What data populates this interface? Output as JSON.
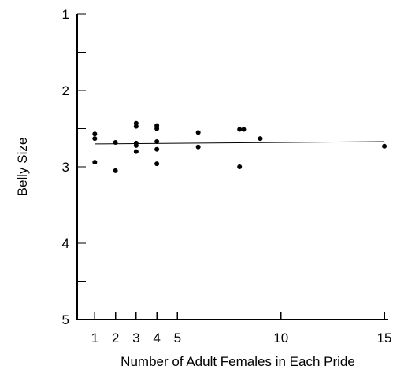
{
  "chart_data": {
    "type": "scatter",
    "title": "",
    "xlabel": "Number of Adult Females in Each Pride",
    "ylabel": "Belly Size",
    "xlim": [
      0.15,
      15.15
    ],
    "ylim": [
      1,
      5
    ],
    "y_axis_inverted": true,
    "grid": false,
    "x_ticks": [
      {
        "value": 1,
        "label": "1"
      },
      {
        "value": 2,
        "label": "2"
      },
      {
        "value": 3,
        "label": "3"
      },
      {
        "value": 4,
        "label": "4"
      },
      {
        "value": 5,
        "label": "5"
      },
      {
        "value": 10,
        "label": "10"
      },
      {
        "value": 15,
        "label": "15"
      }
    ],
    "y_ticks": [
      {
        "value": 1,
        "label": "1"
      },
      {
        "value": 1.5,
        "label": ""
      },
      {
        "value": 2,
        "label": "2"
      },
      {
        "value": 2.5,
        "label": ""
      },
      {
        "value": 3,
        "label": "3"
      },
      {
        "value": 3.5,
        "label": ""
      },
      {
        "value": 4,
        "label": "4"
      },
      {
        "value": 4.5,
        "label": ""
      },
      {
        "value": 5,
        "label": "5"
      }
    ],
    "series": [
      {
        "points": [
          {
            "x": 1,
            "y": 2.57
          },
          {
            "x": 1,
            "y": 2.63
          },
          {
            "x": 1,
            "y": 2.94
          },
          {
            "x": 2,
            "y": 2.68
          },
          {
            "x": 2,
            "y": 3.05
          },
          {
            "x": 3,
            "y": 2.43
          },
          {
            "x": 3,
            "y": 2.47
          },
          {
            "x": 3,
            "y": 2.69
          },
          {
            "x": 3,
            "y": 2.72
          },
          {
            "x": 3,
            "y": 2.8
          },
          {
            "x": 4,
            "y": 2.46
          },
          {
            "x": 4,
            "y": 2.5
          },
          {
            "x": 4,
            "y": 2.67
          },
          {
            "x": 4,
            "y": 2.77
          },
          {
            "x": 4,
            "y": 2.96
          },
          {
            "x": 6,
            "y": 2.55
          },
          {
            "x": 6,
            "y": 2.74
          },
          {
            "x": 8,
            "y": 2.51
          },
          {
            "x": 8.2,
            "y": 2.51
          },
          {
            "x": 8,
            "y": 3.0
          },
          {
            "x": 9,
            "y": 2.63
          },
          {
            "x": 15,
            "y": 2.73
          }
        ]
      }
    ],
    "trend_line": {
      "x": [
        1,
        15
      ],
      "y": [
        2.7,
        2.67
      ]
    }
  }
}
